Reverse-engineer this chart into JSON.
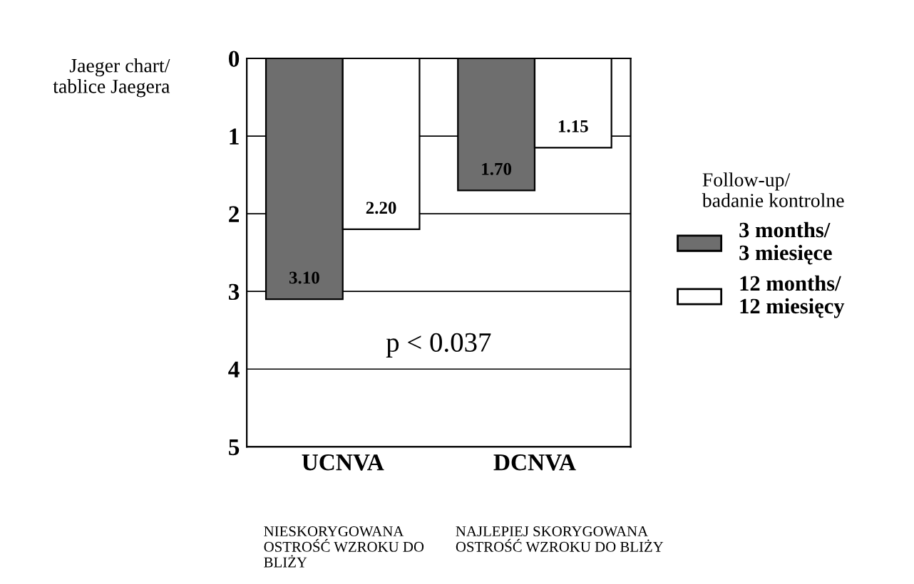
{
  "chart_data": {
    "type": "bar",
    "ylabel": "Jaeger chart/\ntablice Jaegera",
    "legend_title": "Follow-up/\nbadanie kontrolne",
    "categories": [
      "UCNVA",
      "DCNVA"
    ],
    "series": [
      {
        "name": "3 months/\n3 miesięce",
        "color": "#6e6e6e",
        "values": [
          3.1,
          1.7
        ],
        "value_labels": [
          "3.10",
          "1.70"
        ]
      },
      {
        "name": "12 months/\n12 miesięcy",
        "color": "#ffffff",
        "values": [
          2.2,
          1.15
        ],
        "value_labels": [
          "2.20",
          "1.15"
        ]
      }
    ],
    "ylim": [
      5,
      0
    ],
    "yticks": [
      0,
      1,
      2,
      3,
      4,
      5
    ],
    "grid": "y",
    "legend": "right",
    "annotations": [
      "p < 0.037",
      "NIESKORYGOWANA\nOSTROŚĆ WZROKU DO\nBLIŻY",
      "NAJLEPIEJ SKORYGOWANA\nOSTROŚĆ WZROKU DO BLIŻY"
    ]
  }
}
